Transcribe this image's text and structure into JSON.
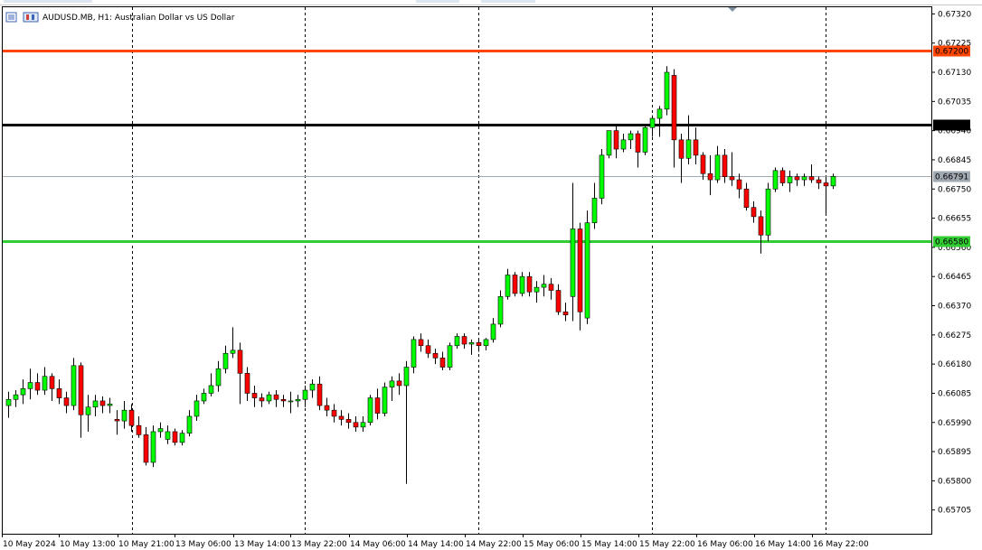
{
  "header": {
    "symbol_title": "AUDUSD.MB, H1:  Australian Dollar vs US Dollar"
  },
  "chart_data": {
    "type": "candlestick",
    "title": "AUDUSD.MB, H1:  Australian Dollar vs US Dollar",
    "symbol": "AUDUSD.MB",
    "timeframe": "H1",
    "ylim": [
      0.6566,
      0.6733
    ],
    "y_ticks": [
      "0.67320",
      "0.67225",
      "0.67130",
      "0.67035",
      "0.66940",
      "0.66845",
      "0.66750",
      "0.66655",
      "0.66560",
      "0.66465",
      "0.66370",
      "0.66275",
      "0.66180",
      "0.66085",
      "0.65990",
      "0.65895",
      "0.65800",
      "0.65705"
    ],
    "x_ticks": [
      "10 May 2024",
      "10 May 13:00",
      "10 May 21:00",
      "13 May 06:00",
      "13 May 14:00",
      "13 May 22:00",
      "14 May 06:00",
      "14 May 14:00",
      "14 May 22:00",
      "15 May 06:00",
      "15 May 14:00",
      "15 May 22:00",
      "16 May 06:00",
      "16 May 14:00",
      "16 May 22:00"
    ],
    "horizontal_lines": [
      {
        "label": "0.67200",
        "price": 0.672,
        "color": "#ff4500"
      },
      {
        "label": "0.66960",
        "price": 0.6696,
        "color": "#000000"
      },
      {
        "label": "0.66791",
        "price": 0.66791,
        "color": "#a0a8b0"
      },
      {
        "label": "0.66580",
        "price": 0.6658,
        "color": "#32cd32"
      }
    ],
    "colors": {
      "bull": "#00ff00",
      "bear": "#ff0000",
      "wick": "#000000"
    },
    "candles": [
      {
        "o": 0.66045,
        "h": 0.6609,
        "l": 0.66005,
        "c": 0.66065
      },
      {
        "o": 0.66065,
        "h": 0.66095,
        "l": 0.6604,
        "c": 0.6608
      },
      {
        "o": 0.6608,
        "h": 0.6613,
        "l": 0.6605,
        "c": 0.661
      },
      {
        "o": 0.661,
        "h": 0.66165,
        "l": 0.66065,
        "c": 0.6612
      },
      {
        "o": 0.6612,
        "h": 0.6615,
        "l": 0.6608,
        "c": 0.66095
      },
      {
        "o": 0.66095,
        "h": 0.6617,
        "l": 0.6608,
        "c": 0.6614
      },
      {
        "o": 0.6614,
        "h": 0.6615,
        "l": 0.6606,
        "c": 0.661
      },
      {
        "o": 0.661,
        "h": 0.6613,
        "l": 0.6605,
        "c": 0.6607
      },
      {
        "o": 0.6607,
        "h": 0.6609,
        "l": 0.6602,
        "c": 0.66045
      },
      {
        "o": 0.66045,
        "h": 0.662,
        "l": 0.6603,
        "c": 0.66175
      },
      {
        "o": 0.66175,
        "h": 0.66185,
        "l": 0.6594,
        "c": 0.66015
      },
      {
        "o": 0.66015,
        "h": 0.6608,
        "l": 0.6596,
        "c": 0.6604
      },
      {
        "o": 0.6604,
        "h": 0.6608,
        "l": 0.6601,
        "c": 0.6606
      },
      {
        "o": 0.6606,
        "h": 0.66075,
        "l": 0.6602,
        "c": 0.66045
      },
      {
        "o": 0.66045,
        "h": 0.6607,
        "l": 0.6602,
        "c": 0.6605
      },
      {
        "o": 0.66,
        "h": 0.6603,
        "l": 0.6595,
        "c": 0.65995
      },
      {
        "o": 0.65995,
        "h": 0.6606,
        "l": 0.6597,
        "c": 0.6603
      },
      {
        "o": 0.6603,
        "h": 0.6605,
        "l": 0.6596,
        "c": 0.6598
      },
      {
        "o": 0.6598,
        "h": 0.6601,
        "l": 0.6594,
        "c": 0.6595
      },
      {
        "o": 0.6595,
        "h": 0.65975,
        "l": 0.6585,
        "c": 0.6586
      },
      {
        "o": 0.6586,
        "h": 0.6598,
        "l": 0.65845,
        "c": 0.6596
      },
      {
        "o": 0.6596,
        "h": 0.6599,
        "l": 0.6594,
        "c": 0.6597
      },
      {
        "o": 0.65935,
        "h": 0.6598,
        "l": 0.6592,
        "c": 0.6596
      },
      {
        "o": 0.6596,
        "h": 0.6597,
        "l": 0.65915,
        "c": 0.65925
      },
      {
        "o": 0.65925,
        "h": 0.65965,
        "l": 0.65915,
        "c": 0.65955
      },
      {
        "o": 0.65955,
        "h": 0.6603,
        "l": 0.65945,
        "c": 0.6601
      },
      {
        "o": 0.6601,
        "h": 0.6608,
        "l": 0.65995,
        "c": 0.6606
      },
      {
        "o": 0.6606,
        "h": 0.661,
        "l": 0.6605,
        "c": 0.66085
      },
      {
        "o": 0.66085,
        "h": 0.6615,
        "l": 0.66075,
        "c": 0.6611
      },
      {
        "o": 0.6611,
        "h": 0.6619,
        "l": 0.6609,
        "c": 0.66165
      },
      {
        "o": 0.66165,
        "h": 0.6624,
        "l": 0.6615,
        "c": 0.66215
      },
      {
        "o": 0.66215,
        "h": 0.663,
        "l": 0.662,
        "c": 0.66225
      },
      {
        "o": 0.66225,
        "h": 0.6625,
        "l": 0.6605,
        "c": 0.6615
      },
      {
        "o": 0.6615,
        "h": 0.6617,
        "l": 0.6606,
        "c": 0.66085
      },
      {
        "o": 0.66085,
        "h": 0.6611,
        "l": 0.6604,
        "c": 0.6607
      },
      {
        "o": 0.6607,
        "h": 0.66085,
        "l": 0.6604,
        "c": 0.6606
      },
      {
        "o": 0.6606,
        "h": 0.6609,
        "l": 0.6605,
        "c": 0.6608
      },
      {
        "o": 0.6608,
        "h": 0.66095,
        "l": 0.6604,
        "c": 0.66065
      },
      {
        "o": 0.66065,
        "h": 0.6608,
        "l": 0.6604,
        "c": 0.6606
      },
      {
        "o": 0.6606,
        "h": 0.6609,
        "l": 0.6602,
        "c": 0.6606
      },
      {
        "o": 0.6606,
        "h": 0.6608,
        "l": 0.6604,
        "c": 0.66065
      },
      {
        "o": 0.66065,
        "h": 0.6611,
        "l": 0.6604,
        "c": 0.66095
      },
      {
        "o": 0.66095,
        "h": 0.6613,
        "l": 0.6607,
        "c": 0.66115
      },
      {
        "o": 0.66115,
        "h": 0.6614,
        "l": 0.6603,
        "c": 0.66045
      },
      {
        "o": 0.66045,
        "h": 0.6607,
        "l": 0.6601,
        "c": 0.6603
      },
      {
        "o": 0.6603,
        "h": 0.6605,
        "l": 0.6599,
        "c": 0.6601
      },
      {
        "o": 0.6601,
        "h": 0.6603,
        "l": 0.6598,
        "c": 0.66
      },
      {
        "o": 0.66,
        "h": 0.6602,
        "l": 0.6597,
        "c": 0.6599
      },
      {
        "o": 0.6599,
        "h": 0.6601,
        "l": 0.6596,
        "c": 0.65975
      },
      {
        "o": 0.65975,
        "h": 0.6601,
        "l": 0.6596,
        "c": 0.6599
      },
      {
        "o": 0.6599,
        "h": 0.6608,
        "l": 0.6598,
        "c": 0.6607
      },
      {
        "o": 0.6607,
        "h": 0.661,
        "l": 0.66,
        "c": 0.6602
      },
      {
        "o": 0.6602,
        "h": 0.6612,
        "l": 0.6601,
        "c": 0.66105
      },
      {
        "o": 0.66105,
        "h": 0.6614,
        "l": 0.6606,
        "c": 0.66125
      },
      {
        "o": 0.66125,
        "h": 0.6615,
        "l": 0.6608,
        "c": 0.6611
      },
      {
        "o": 0.6611,
        "h": 0.6619,
        "l": 0.6579,
        "c": 0.6617
      },
      {
        "o": 0.6617,
        "h": 0.6627,
        "l": 0.6615,
        "c": 0.6626
      },
      {
        "o": 0.6626,
        "h": 0.6628,
        "l": 0.6622,
        "c": 0.6624
      },
      {
        "o": 0.6624,
        "h": 0.6626,
        "l": 0.662,
        "c": 0.66215
      },
      {
        "o": 0.66215,
        "h": 0.6623,
        "l": 0.6618,
        "c": 0.662
      },
      {
        "o": 0.662,
        "h": 0.6622,
        "l": 0.6616,
        "c": 0.6617
      },
      {
        "o": 0.6617,
        "h": 0.6625,
        "l": 0.6616,
        "c": 0.6624
      },
      {
        "o": 0.6624,
        "h": 0.6628,
        "l": 0.6623,
        "c": 0.6627
      },
      {
        "o": 0.6627,
        "h": 0.6628,
        "l": 0.6623,
        "c": 0.66245
      },
      {
        "o": 0.66245,
        "h": 0.6626,
        "l": 0.6621,
        "c": 0.6625
      },
      {
        "o": 0.6625,
        "h": 0.6626,
        "l": 0.6622,
        "c": 0.6624
      },
      {
        "o": 0.6624,
        "h": 0.66265,
        "l": 0.66225,
        "c": 0.6626
      },
      {
        "o": 0.6626,
        "h": 0.6633,
        "l": 0.6625,
        "c": 0.6631
      },
      {
        "o": 0.6631,
        "h": 0.6642,
        "l": 0.663,
        "c": 0.664
      },
      {
        "o": 0.664,
        "h": 0.6649,
        "l": 0.6639,
        "c": 0.6647
      },
      {
        "o": 0.6647,
        "h": 0.6648,
        "l": 0.664,
        "c": 0.6641
      },
      {
        "o": 0.6641,
        "h": 0.6648,
        "l": 0.664,
        "c": 0.66465
      },
      {
        "o": 0.66465,
        "h": 0.6648,
        "l": 0.664,
        "c": 0.66415
      },
      {
        "o": 0.66415,
        "h": 0.6645,
        "l": 0.6638,
        "c": 0.6643
      },
      {
        "o": 0.6643,
        "h": 0.6647,
        "l": 0.664,
        "c": 0.6644
      },
      {
        "o": 0.6644,
        "h": 0.6646,
        "l": 0.6639,
        "c": 0.6642
      },
      {
        "o": 0.6642,
        "h": 0.6644,
        "l": 0.6634,
        "c": 0.6635
      },
      {
        "o": 0.6635,
        "h": 0.6638,
        "l": 0.6632,
        "c": 0.6634
      },
      {
        "o": 0.664,
        "h": 0.6677,
        "l": 0.6632,
        "c": 0.6662
      },
      {
        "o": 0.6662,
        "h": 0.6664,
        "l": 0.6629,
        "c": 0.6635
      },
      {
        "o": 0.6633,
        "h": 0.6668,
        "l": 0.6631,
        "c": 0.6664
      },
      {
        "o": 0.6664,
        "h": 0.6677,
        "l": 0.6662,
        "c": 0.6672
      },
      {
        "o": 0.6672,
        "h": 0.6688,
        "l": 0.667,
        "c": 0.6686
      },
      {
        "o": 0.6686,
        "h": 0.6694,
        "l": 0.6685,
        "c": 0.6694
      },
      {
        "o": 0.6694,
        "h": 0.6696,
        "l": 0.6685,
        "c": 0.6688
      },
      {
        "o": 0.6688,
        "h": 0.6693,
        "l": 0.6687,
        "c": 0.6691
      },
      {
        "o": 0.6691,
        "h": 0.6694,
        "l": 0.6688,
        "c": 0.6693
      },
      {
        "o": 0.6693,
        "h": 0.6694,
        "l": 0.6682,
        "c": 0.6687
      },
      {
        "o": 0.6687,
        "h": 0.6696,
        "l": 0.6686,
        "c": 0.6695
      },
      {
        "o": 0.6695,
        "h": 0.6699,
        "l": 0.6692,
        "c": 0.6698
      },
      {
        "o": 0.6698,
        "h": 0.6702,
        "l": 0.6692,
        "c": 0.6701
      },
      {
        "o": 0.6701,
        "h": 0.6715,
        "l": 0.6699,
        "c": 0.6713
      },
      {
        "o": 0.6712,
        "h": 0.6714,
        "l": 0.6682,
        "c": 0.6691
      },
      {
        "o": 0.6691,
        "h": 0.6693,
        "l": 0.6677,
        "c": 0.6685
      },
      {
        "o": 0.6685,
        "h": 0.6699,
        "l": 0.6683,
        "c": 0.6691
      },
      {
        "o": 0.6691,
        "h": 0.6695,
        "l": 0.6683,
        "c": 0.6686
      },
      {
        "o": 0.6686,
        "h": 0.6687,
        "l": 0.6678,
        "c": 0.668
      },
      {
        "o": 0.668,
        "h": 0.6686,
        "l": 0.6673,
        "c": 0.6678
      },
      {
        "o": 0.6678,
        "h": 0.6689,
        "l": 0.6677,
        "c": 0.6686
      },
      {
        "o": 0.6686,
        "h": 0.6688,
        "l": 0.6677,
        "c": 0.6679
      },
      {
        "o": 0.6679,
        "h": 0.6687,
        "l": 0.6676,
        "c": 0.6678
      },
      {
        "o": 0.6678,
        "h": 0.668,
        "l": 0.6672,
        "c": 0.6675
      },
      {
        "o": 0.6675,
        "h": 0.6677,
        "l": 0.6668,
        "c": 0.6669
      },
      {
        "o": 0.6669,
        "h": 0.6671,
        "l": 0.6664,
        "c": 0.6666
      },
      {
        "o": 0.6666,
        "h": 0.6668,
        "l": 0.6654,
        "c": 0.666
      },
      {
        "o": 0.666,
        "h": 0.6677,
        "l": 0.6658,
        "c": 0.6675
      },
      {
        "o": 0.6675,
        "h": 0.6682,
        "l": 0.6674,
        "c": 0.6681
      },
      {
        "o": 0.6681,
        "h": 0.6682,
        "l": 0.6676,
        "c": 0.6677
      },
      {
        "o": 0.6677,
        "h": 0.6681,
        "l": 0.6674,
        "c": 0.6679
      },
      {
        "o": 0.6679,
        "h": 0.668,
        "l": 0.6676,
        "c": 0.6678
      },
      {
        "o": 0.6678,
        "h": 0.668,
        "l": 0.6676,
        "c": 0.6679
      },
      {
        "o": 0.6679,
        "h": 0.6683,
        "l": 0.6677,
        "c": 0.6678
      },
      {
        "o": 0.6678,
        "h": 0.6679,
        "l": 0.6675,
        "c": 0.6677
      },
      {
        "o": 0.6677,
        "h": 0.6679,
        "l": 0.6667,
        "c": 0.6676
      },
      {
        "o": 0.6676,
        "h": 0.668,
        "l": 0.6675,
        "c": 0.66791
      }
    ]
  }
}
